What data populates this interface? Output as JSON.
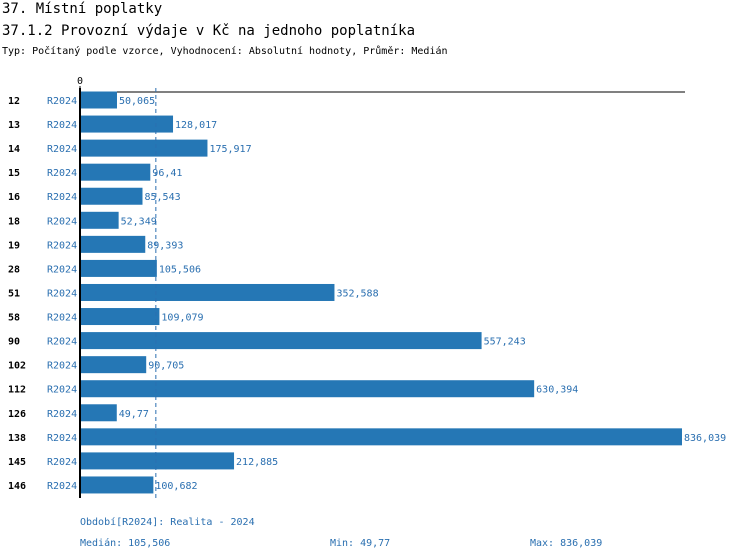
{
  "chart_data": {
    "type": "bar",
    "title": "37. Místní poplatky",
    "subtitle": "37.1.2 Provozní výdaje v Kč na jednoho poplatníka",
    "description": "Typ: Počítaný podle vzorce, Vyhodnocení: Absolutní hodnoty, Průměr: Medián",
    "categories": [
      "12",
      "13",
      "14",
      "15",
      "16",
      "18",
      "19",
      "28",
      "51",
      "58",
      "90",
      "102",
      "112",
      "126",
      "138",
      "145",
      "146"
    ],
    "series": [
      {
        "name": "R2024",
        "color": "#2577b5",
        "values": [
          50.065,
          128.017,
          175.917,
          96.41,
          85.543,
          52.349,
          89.393,
          105.506,
          352.588,
          109.079,
          557.243,
          90.705,
          630.394,
          49.77,
          836.039,
          212.885,
          100.682
        ],
        "value_labels": [
          "50,065",
          "128,017",
          "175,917",
          "96,41",
          "85,543",
          "52,349",
          "89,393",
          "105,506",
          "352,588",
          "109,079",
          "557,243",
          "90,705",
          "630,394",
          "49,77",
          "836,039",
          "212,885",
          "100,682"
        ]
      }
    ],
    "xlim": [
      0,
      836.039
    ],
    "xticks": [
      0
    ],
    "highlight": {
      "category_index": 16,
      "color": "#e00000"
    },
    "median": {
      "value": 105.506,
      "label": "Medián: 105,506"
    },
    "min": {
      "value": 49.77,
      "label": "Min: 49,77"
    },
    "max": {
      "value": 836.039,
      "label": "Max: 836,039"
    },
    "period_note": "Období[R2024]: Realita - 2024"
  }
}
